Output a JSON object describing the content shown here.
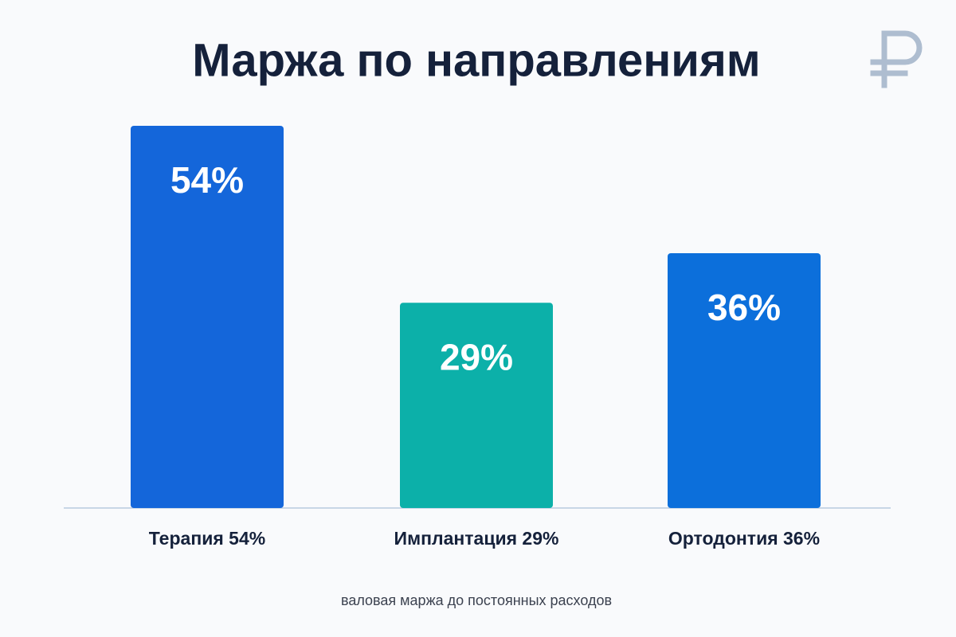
{
  "chart_data": {
    "type": "bar",
    "title": "Маржа по направлениям",
    "categories": [
      "Терапия 54%",
      "Имплантация 29%",
      "Ортодонтия 36%"
    ],
    "values": [
      54,
      29,
      36
    ],
    "value_labels": [
      "54%",
      "29%",
      "36%"
    ],
    "colors": [
      "#1466da",
      "#0cb0a9",
      "#0c6fdb"
    ],
    "note": "валовая маржа до постоянных расходов"
  }
}
